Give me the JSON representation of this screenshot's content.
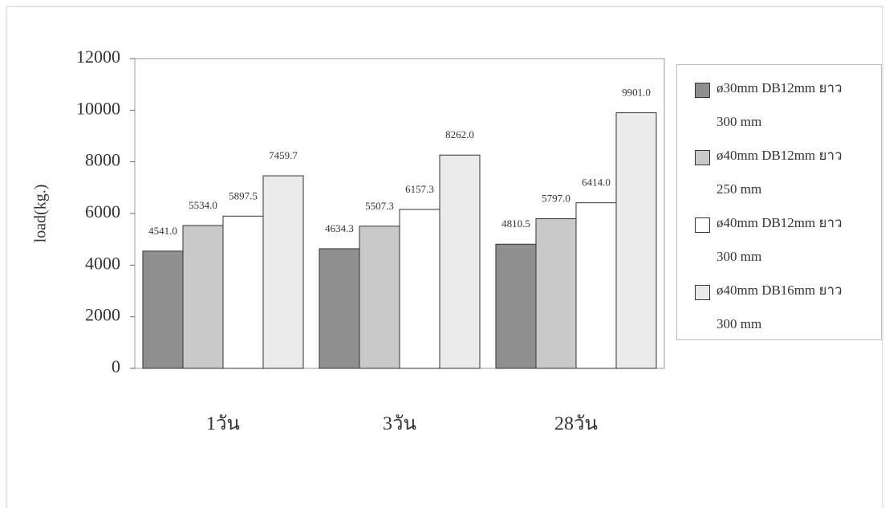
{
  "chart_data": {
    "type": "bar",
    "y_label": "load(kg.)",
    "categories": [
      "1วัน",
      "3วัน",
      "28วัน"
    ],
    "series": [
      {
        "name": "ø30mm DB12mm ยาว 300 mm",
        "color": "#8f8f8f",
        "values": [
          4541.0,
          4634.3,
          4810.5
        ],
        "value_labels": [
          "4541.0",
          "4634.3",
          "4810.5"
        ]
      },
      {
        "name": "ø40mm DB12mm ยาว 250 mm",
        "color": "#c9c9c9",
        "values": [
          5534.0,
          5507.3,
          5797.0
        ],
        "value_labels": [
          "5534.0",
          "5507.3",
          "5797.0"
        ]
      },
      {
        "name": "ø40mm DB12mm ยาว 300 mm",
        "color": "#ffffff",
        "values": [
          5897.5,
          6157.3,
          6414.0
        ],
        "value_labels": [
          "5897.5",
          "6157.3",
          "6414.0"
        ]
      },
      {
        "name": "ø40mm DB16mm ยาว 300 mm",
        "color": "#ebebeb",
        "values": [
          7459.7,
          8262.0,
          9901.0
        ],
        "value_labels": [
          "7459.7",
          "8262.0",
          "9901.0"
        ]
      }
    ],
    "ylim": [
      0,
      12000
    ],
    "yticks": [
      0,
      2000,
      4000,
      6000,
      8000,
      10000,
      12000
    ]
  }
}
